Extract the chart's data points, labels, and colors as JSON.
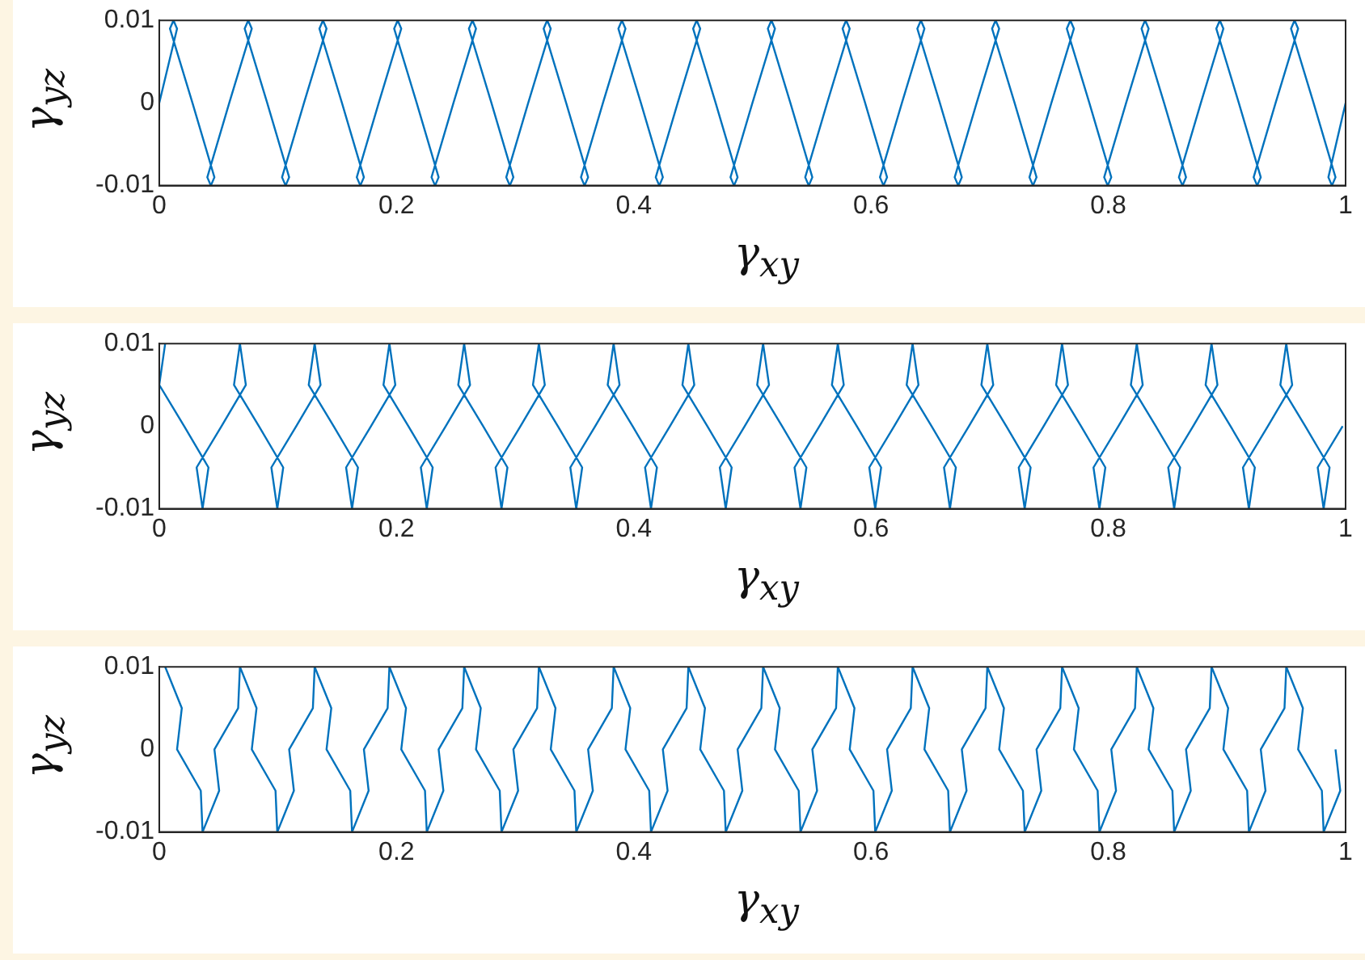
{
  "chart_data": [
    {
      "type": "line",
      "xlabel": "γ$_{xy}$",
      "ylabel": "γ$_{yz}$",
      "xlim": [
        0,
        1
      ],
      "ylim": [
        -0.01,
        0.01
      ],
      "xticks": [
        0,
        0.2,
        0.4,
        0.6,
        0.8,
        1
      ],
      "yticks": [
        -0.01,
        0,
        0.01
      ],
      "grid": false,
      "legend": false,
      "marker": "none",
      "line_style": "solid",
      "series": [
        {
          "color": "#0072bd",
          "x": [
            0,
            0.015,
            0.012,
            0.009,
            0.028,
            0.0465,
            0.0435,
            0.0405,
            0.059,
            0.078,
            0.075,
            0.072,
            0.091,
            0.1095,
            0.1065,
            0.1035,
            0.122,
            0.141,
            0.138,
            0.135,
            0.154,
            0.1725,
            0.1695,
            0.1665,
            0.185,
            0.204,
            0.201,
            0.198,
            0.217,
            0.2355,
            0.2325,
            0.2295,
            0.248,
            0.267,
            0.264,
            0.261,
            0.28,
            0.2985,
            0.2955,
            0.2925,
            0.311,
            0.33,
            0.327,
            0.324,
            0.343,
            0.3615,
            0.3585,
            0.3555,
            0.374,
            0.393,
            0.39,
            0.387,
            0.406,
            0.4245,
            0.4215,
            0.4185,
            0.437,
            0.456,
            0.453,
            0.45,
            0.469,
            0.4875,
            0.4845,
            0.4815,
            0.5,
            0.519,
            0.516,
            0.513,
            0.532,
            0.5505,
            0.5475,
            0.5445,
            0.563,
            0.582,
            0.579,
            0.576,
            0.595,
            0.6135,
            0.6105,
            0.6075,
            0.626,
            0.645,
            0.642,
            0.639,
            0.658,
            0.6765,
            0.6735,
            0.6705,
            0.689,
            0.708,
            0.705,
            0.702,
            0.721,
            0.7395,
            0.7365,
            0.7335,
            0.752,
            0.771,
            0.768,
            0.765,
            0.784,
            0.8025,
            0.7995,
            0.7965,
            0.815,
            0.834,
            0.831,
            0.828,
            0.847,
            0.8655,
            0.8625,
            0.8595,
            0.878,
            0.897,
            0.894,
            0.891,
            0.91,
            0.9285,
            0.9255,
            0.9225,
            0.941,
            0.96,
            0.957,
            0.954,
            0.973,
            0.9915,
            0.9885,
            0.9855,
            1
          ],
          "values": [
            0,
            0.009,
            0.01,
            0.009,
            0,
            -0.009,
            -0.01,
            -0.009,
            0,
            0.009,
            0.01,
            0.009,
            0,
            -0.009,
            -0.01,
            -0.009,
            0,
            0.009,
            0.01,
            0.009,
            0,
            -0.009,
            -0.01,
            -0.009,
            0,
            0.009,
            0.01,
            0.009,
            0,
            -0.009,
            -0.01,
            -0.009,
            0,
            0.009,
            0.01,
            0.009,
            0,
            -0.009,
            -0.01,
            -0.009,
            0,
            0.009,
            0.01,
            0.009,
            0,
            -0.009,
            -0.01,
            -0.009,
            0,
            0.009,
            0.01,
            0.009,
            0,
            -0.009,
            -0.01,
            -0.009,
            0,
            0.009,
            0.01,
            0.009,
            0,
            -0.009,
            -0.01,
            -0.009,
            0,
            0.009,
            0.01,
            0.009,
            0,
            -0.009,
            -0.01,
            -0.009,
            0,
            0.009,
            0.01,
            0.009,
            0,
            -0.009,
            -0.01,
            -0.009,
            0,
            0.009,
            0.01,
            0.009,
            0,
            -0.009,
            -0.01,
            -0.009,
            0,
            0.009,
            0.01,
            0.009,
            0,
            -0.009,
            -0.01,
            -0.009,
            0,
            0.009,
            0.01,
            0.009,
            0,
            -0.009,
            -0.01,
            -0.009,
            0,
            0.009,
            0.01,
            0.009,
            0,
            -0.009,
            -0.01,
            -0.009,
            0,
            0.009,
            0.01,
            0.009,
            0,
            -0.009,
            -0.01,
            -0.009,
            0,
            0.009,
            0.01,
            0.009,
            0,
            -0.009,
            -0.01,
            -0.009,
            0
          ]
        }
      ]
    },
    {
      "type": "line",
      "xlabel": "γ$_{xy}$",
      "ylabel": "γ$_{yz}$",
      "xlim": [
        0,
        1
      ],
      "ylim": [
        -0.01,
        0.01
      ],
      "xticks": [
        0,
        0.2,
        0.4,
        0.6,
        0.8,
        1
      ],
      "yticks": [
        -0.01,
        0,
        0.01
      ],
      "grid": false,
      "legend": false,
      "marker": "none",
      "line_style": "solid",
      "series": [
        {
          "color": "#0072bd",
          "x": [
            0.005,
            0,
            0.021,
            0.0415,
            0.0365,
            0.0315,
            0.0525,
            0.073,
            0.068,
            0.063,
            0.084,
            0.1045,
            0.0995,
            0.0945,
            0.1155,
            0.136,
            0.131,
            0.126,
            0.147,
            0.1675,
            0.1625,
            0.1575,
            0.1785,
            0.199,
            0.194,
            0.189,
            0.21,
            0.2305,
            0.2255,
            0.2205,
            0.2415,
            0.262,
            0.257,
            0.252,
            0.273,
            0.2935,
            0.2885,
            0.2835,
            0.3045,
            0.325,
            0.32,
            0.315,
            0.336,
            0.3565,
            0.3515,
            0.3465,
            0.3675,
            0.388,
            0.383,
            0.378,
            0.399,
            0.4195,
            0.4145,
            0.4095,
            0.4305,
            0.451,
            0.446,
            0.441,
            0.462,
            0.4825,
            0.4775,
            0.4725,
            0.4935,
            0.514,
            0.509,
            0.504,
            0.525,
            0.5455,
            0.5405,
            0.5355,
            0.5565,
            0.577,
            0.572,
            0.567,
            0.588,
            0.6085,
            0.6035,
            0.5985,
            0.6195,
            0.64,
            0.635,
            0.63,
            0.651,
            0.6715,
            0.6665,
            0.6615,
            0.6825,
            0.703,
            0.698,
            0.693,
            0.714,
            0.7345,
            0.7295,
            0.7245,
            0.7455,
            0.766,
            0.761,
            0.756,
            0.777,
            0.7975,
            0.7925,
            0.7875,
            0.8085,
            0.829,
            0.824,
            0.819,
            0.84,
            0.8605,
            0.8555,
            0.8505,
            0.8715,
            0.892,
            0.887,
            0.882,
            0.903,
            0.9235,
            0.9185,
            0.9135,
            0.9345,
            0.955,
            0.95,
            0.945,
            0.966,
            0.9865,
            0.9815,
            0.9765,
            0.9975
          ],
          "values": [
            0.01,
            0.005,
            0,
            -0.005,
            -0.01,
            -0.005,
            0,
            0.005,
            0.01,
            0.005,
            0,
            -0.005,
            -0.01,
            -0.005,
            0,
            0.005,
            0.01,
            0.005,
            0,
            -0.005,
            -0.01,
            -0.005,
            0,
            0.005,
            0.01,
            0.005,
            0,
            -0.005,
            -0.01,
            -0.005,
            0,
            0.005,
            0.01,
            0.005,
            0,
            -0.005,
            -0.01,
            -0.005,
            0,
            0.005,
            0.01,
            0.005,
            0,
            -0.005,
            -0.01,
            -0.005,
            0,
            0.005,
            0.01,
            0.005,
            0,
            -0.005,
            -0.01,
            -0.005,
            0,
            0.005,
            0.01,
            0.005,
            0,
            -0.005,
            -0.01,
            -0.005,
            0,
            0.005,
            0.01,
            0.005,
            0,
            -0.005,
            -0.01,
            -0.005,
            0,
            0.005,
            0.01,
            0.005,
            0,
            -0.005,
            -0.01,
            -0.005,
            0,
            0.005,
            0.01,
            0.005,
            0,
            -0.005,
            -0.01,
            -0.005,
            0,
            0.005,
            0.01,
            0.005,
            0,
            -0.005,
            -0.01,
            -0.005,
            0,
            0.005,
            0.01,
            0.005,
            0,
            -0.005,
            -0.01,
            -0.005,
            0,
            0.005,
            0.01,
            0.005,
            0,
            -0.005,
            -0.01,
            -0.005,
            0,
            0.005,
            0.01,
            0.005,
            0,
            -0.005,
            -0.01,
            -0.005,
            0,
            0.005,
            0.01,
            0.005,
            0,
            -0.005,
            -0.01,
            -0.005,
            0
          ]
        }
      ]
    },
    {
      "type": "line",
      "xlabel": "γ$_{xy}$",
      "ylabel": "γ$_{yz}$",
      "xlim": [
        0,
        1
      ],
      "ylim": [
        -0.01,
        0.01
      ],
      "xticks": [
        0,
        0.2,
        0.4,
        0.6,
        0.8,
        1
      ],
      "yticks": [
        -0.01,
        0,
        0.01
      ],
      "grid": false,
      "legend": false,
      "marker": "none",
      "line_style": "solid",
      "series": [
        {
          "color": "#0072bd",
          "x": [
            0.005,
            0.019,
            0.015,
            0.035,
            0.0365,
            0.0505,
            0.0465,
            0.0665,
            0.068,
            0.082,
            0.078,
            0.098,
            0.0995,
            0.1135,
            0.1095,
            0.1295,
            0.131,
            0.145,
            0.141,
            0.161,
            0.1625,
            0.1765,
            0.1725,
            0.1925,
            0.194,
            0.208,
            0.204,
            0.224,
            0.2255,
            0.2395,
            0.2355,
            0.2555,
            0.257,
            0.271,
            0.267,
            0.287,
            0.2885,
            0.3025,
            0.2985,
            0.3185,
            0.32,
            0.334,
            0.33,
            0.35,
            0.3515,
            0.3655,
            0.3615,
            0.3815,
            0.383,
            0.397,
            0.393,
            0.413,
            0.4145,
            0.4285,
            0.4245,
            0.4445,
            0.446,
            0.46,
            0.456,
            0.476,
            0.4775,
            0.4915,
            0.4875,
            0.5075,
            0.509,
            0.523,
            0.519,
            0.539,
            0.5405,
            0.5545,
            0.5505,
            0.5705,
            0.572,
            0.586,
            0.582,
            0.602,
            0.6035,
            0.6175,
            0.6135,
            0.6335,
            0.635,
            0.649,
            0.645,
            0.665,
            0.6665,
            0.6805,
            0.6765,
            0.6965,
            0.698,
            0.712,
            0.708,
            0.728,
            0.7295,
            0.7435,
            0.7395,
            0.7595,
            0.761,
            0.775,
            0.771,
            0.791,
            0.7925,
            0.8065,
            0.8025,
            0.8225,
            0.824,
            0.838,
            0.834,
            0.854,
            0.8555,
            0.8695,
            0.8655,
            0.8855,
            0.887,
            0.901,
            0.897,
            0.917,
            0.9185,
            0.9325,
            0.9285,
            0.9485,
            0.95,
            0.964,
            0.96,
            0.98,
            0.9815,
            0.9955,
            0.9915
          ],
          "values": [
            0.01,
            0.005,
            0,
            -0.005,
            -0.01,
            -0.005,
            0,
            0.005,
            0.01,
            0.005,
            0,
            -0.005,
            -0.01,
            -0.005,
            0,
            0.005,
            0.01,
            0.005,
            0,
            -0.005,
            -0.01,
            -0.005,
            0,
            0.005,
            0.01,
            0.005,
            0,
            -0.005,
            -0.01,
            -0.005,
            0,
            0.005,
            0.01,
            0.005,
            0,
            -0.005,
            -0.01,
            -0.005,
            0,
            0.005,
            0.01,
            0.005,
            0,
            -0.005,
            -0.01,
            -0.005,
            0,
            0.005,
            0.01,
            0.005,
            0,
            -0.005,
            -0.01,
            -0.005,
            0,
            0.005,
            0.01,
            0.005,
            0,
            -0.005,
            -0.01,
            -0.005,
            0,
            0.005,
            0.01,
            0.005,
            0,
            -0.005,
            -0.01,
            -0.005,
            0,
            0.005,
            0.01,
            0.005,
            0,
            -0.005,
            -0.01,
            -0.005,
            0,
            0.005,
            0.01,
            0.005,
            0,
            -0.005,
            -0.01,
            -0.005,
            0,
            0.005,
            0.01,
            0.005,
            0,
            -0.005,
            -0.01,
            -0.005,
            0,
            0.005,
            0.01,
            0.005,
            0,
            -0.005,
            -0.01,
            -0.005,
            0,
            0.005,
            0.01,
            0.005,
            0,
            -0.005,
            -0.01,
            -0.005,
            0,
            0.005,
            0.01,
            0.005,
            0,
            -0.005,
            -0.01,
            -0.005,
            0,
            0.005,
            0.01,
            0.005,
            0,
            -0.005,
            -0.01,
            -0.005,
            0
          ]
        }
      ]
    }
  ]
}
